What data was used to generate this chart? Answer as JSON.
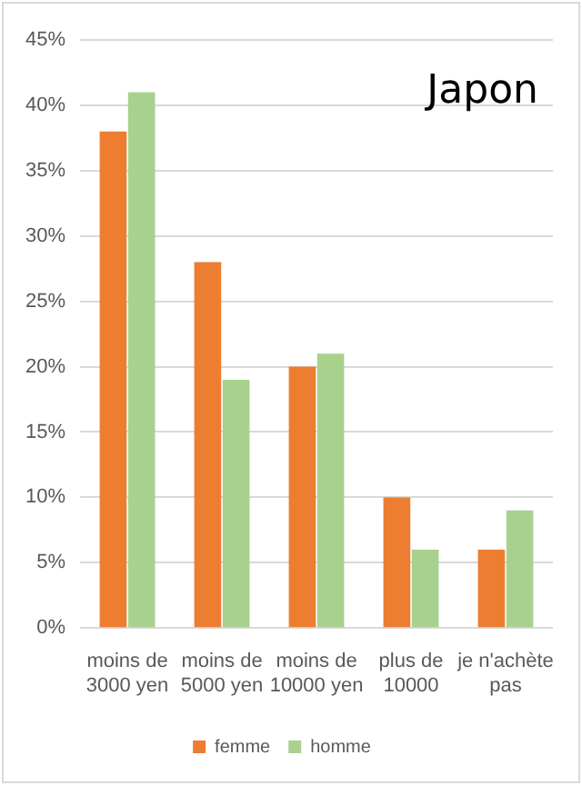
{
  "chart_data": {
    "type": "bar",
    "title": "Japon",
    "categories": [
      "moins de 3000 yen",
      "moins de 5000 yen",
      "moins de 10000 yen",
      "plus de 10000",
      "je n'achète pas"
    ],
    "series": [
      {
        "name": "femme",
        "color": "#ed7d31",
        "values": [
          38,
          28,
          20,
          10,
          6
        ]
      },
      {
        "name": "homme",
        "color": "#a9d18e",
        "values": [
          41,
          19,
          21,
          6,
          9
        ]
      }
    ],
    "ylim": [
      0,
      45
    ],
    "yticks": [
      {
        "value": 0,
        "label": "0%"
      },
      {
        "value": 5,
        "label": "5%"
      },
      {
        "value": 10,
        "label": "10%"
      },
      {
        "value": 15,
        "label": "15%"
      },
      {
        "value": 20,
        "label": "20%"
      },
      {
        "value": 25,
        "label": "25%"
      },
      {
        "value": 30,
        "label": "30%"
      },
      {
        "value": 35,
        "label": "35%"
      },
      {
        "value": 40,
        "label": "40%"
      },
      {
        "value": 45,
        "label": "45%"
      }
    ],
    "grid": "y",
    "legend": "bottom"
  }
}
